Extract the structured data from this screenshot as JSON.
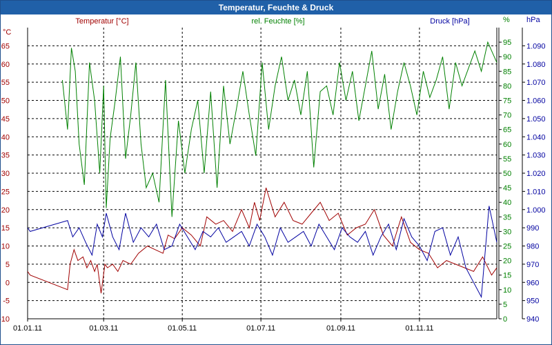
{
  "window": {
    "title": "Temperatur, Feuchte & Druck"
  },
  "colors": {
    "temperature": "#a00000",
    "humidity": "#008000",
    "pressure": "#0000a0",
    "titlebar": "#2060a8",
    "grid": "#000000"
  },
  "chart_data": {
    "type": "line",
    "title": "Temperatur, Feuchte & Druck",
    "grid": true,
    "x_ticks": [
      "01.01.11",
      "01.03.11",
      "01.05.11",
      "01.07.11",
      "01.09.11",
      "01.11.11"
    ],
    "xlim": [
      "2011-01-01",
      "2011-12-31"
    ],
    "axes": {
      "temperature": {
        "label": "Temperatur [°C]",
        "unit": "°C",
        "ylim": [
          -10,
          70
        ],
        "ticks": [
          "-10",
          "-5",
          "0",
          "5",
          "10",
          "15",
          "20",
          "25",
          "30",
          "35",
          "40",
          "45",
          "50",
          "55",
          "60",
          "65"
        ]
      },
      "humidity": {
        "label": "rel. Feuchte [%]",
        "unit": "%",
        "ylim": [
          0,
          100
        ],
        "ticks": [
          "0",
          "5",
          "10",
          "15",
          "20",
          "25",
          "30",
          "35",
          "40",
          "45",
          "50",
          "55",
          "60",
          "65",
          "70",
          "75",
          "80",
          "85",
          "90",
          "95"
        ]
      },
      "pressure": {
        "label": "Druck [hPa]",
        "unit": "hPa",
        "ylim": [
          940,
          1100
        ],
        "ticks": [
          "940",
          "950",
          "960",
          "970",
          "980",
          "990",
          "1.000",
          "1.010",
          "1.020",
          "1.030",
          "1.040",
          "1.050",
          "1.060",
          "1.070",
          "1.080",
          "1.090"
        ]
      }
    },
    "series": [
      {
        "name": "Temperatur [°C]",
        "axis": "temperature",
        "color": "#a00000",
        "x": [
          "2011-01-01",
          "2011-01-03",
          "2011-02-01",
          "2011-02-03",
          "2011-02-06",
          "2011-02-09",
          "2011-02-13",
          "2011-02-16",
          "2011-02-19",
          "2011-02-22",
          "2011-02-24",
          "2011-02-27",
          "2011-03-02",
          "2011-03-04",
          "2011-03-08",
          "2011-03-12",
          "2011-03-16",
          "2011-03-22",
          "2011-03-28",
          "2011-04-04",
          "2011-04-10",
          "2011-04-16",
          "2011-04-20",
          "2011-04-25",
          "2011-05-01",
          "2011-05-08",
          "2011-05-15",
          "2011-05-20",
          "2011-05-27",
          "2011-06-02",
          "2011-06-09",
          "2011-06-16",
          "2011-06-22",
          "2011-06-26",
          "2011-06-30",
          "2011-07-05",
          "2011-07-12",
          "2011-07-19",
          "2011-07-26",
          "2011-08-02",
          "2011-08-09",
          "2011-08-16",
          "2011-08-23",
          "2011-08-30",
          "2011-09-06",
          "2011-09-13",
          "2011-09-20",
          "2011-09-27",
          "2011-10-04",
          "2011-10-11",
          "2011-10-18",
          "2011-10-25",
          "2011-11-01",
          "2011-11-08",
          "2011-11-15",
          "2011-11-22",
          "2011-11-29",
          "2011-12-06",
          "2011-12-13",
          "2011-12-20",
          "2011-12-27",
          "2011-12-31"
        ],
        "values": [
          3,
          2,
          -2,
          5,
          9,
          6,
          7,
          4,
          6,
          3,
          5,
          -3,
          5,
          4,
          5,
          3,
          6,
          5,
          8,
          10,
          9,
          8,
          13,
          12,
          15,
          13,
          10,
          18,
          16,
          17,
          14,
          20,
          15,
          22,
          17,
          26,
          18,
          22,
          17,
          16,
          19,
          22,
          17,
          19,
          13,
          15,
          16,
          20,
          13,
          10,
          18,
          11,
          9,
          8,
          4,
          6,
          5,
          4,
          3,
          7,
          2,
          4
        ]
      },
      {
        "name": "rel. Feuchte [%]",
        "axis": "humidity",
        "color": "#008000",
        "x": [
          "2011-01-28",
          "2011-02-01",
          "2011-02-04",
          "2011-02-07",
          "2011-02-10",
          "2011-02-14",
          "2011-02-18",
          "2011-02-22",
          "2011-02-26",
          "2011-03-01",
          "2011-03-03",
          "2011-03-06",
          "2011-03-10",
          "2011-03-14",
          "2011-03-18",
          "2011-03-22",
          "2011-03-26",
          "2011-03-30",
          "2011-04-03",
          "2011-04-08",
          "2011-04-13",
          "2011-04-18",
          "2011-04-23",
          "2011-04-28",
          "2011-05-03",
          "2011-05-08",
          "2011-05-13",
          "2011-05-18",
          "2011-05-23",
          "2011-05-28",
          "2011-06-02",
          "2011-06-07",
          "2011-06-12",
          "2011-06-17",
          "2011-06-22",
          "2011-06-27",
          "2011-07-02",
          "2011-07-07",
          "2011-07-12",
          "2011-07-17",
          "2011-07-22",
          "2011-07-27",
          "2011-08-01",
          "2011-08-06",
          "2011-08-11",
          "2011-08-16",
          "2011-08-21",
          "2011-08-26",
          "2011-08-31",
          "2011-09-05",
          "2011-09-10",
          "2011-09-15",
          "2011-09-20",
          "2011-09-25",
          "2011-09-30",
          "2011-10-05",
          "2011-10-10",
          "2011-10-15",
          "2011-10-20",
          "2011-10-25",
          "2011-10-30",
          "2011-11-04",
          "2011-11-09",
          "2011-11-14",
          "2011-11-19",
          "2011-11-24",
          "2011-11-29",
          "2011-12-04",
          "2011-12-09",
          "2011-12-14",
          "2011-12-19",
          "2011-12-24",
          "2011-12-29",
          "2011-12-31"
        ],
        "values": [
          82,
          65,
          93,
          85,
          60,
          46,
          88,
          75,
          50,
          80,
          38,
          62,
          75,
          90,
          55,
          70,
          88,
          60,
          45,
          50,
          40,
          82,
          35,
          68,
          50,
          65,
          75,
          50,
          78,
          45,
          80,
          60,
          72,
          85,
          70,
          56,
          88,
          65,
          80,
          90,
          75,
          82,
          70,
          85,
          52,
          78,
          80,
          70,
          88,
          75,
          85,
          68,
          80,
          92,
          72,
          84,
          65,
          78,
          88,
          80,
          70,
          85,
          76,
          82,
          90,
          72,
          88,
          80,
          86,
          92,
          85,
          95,
          90,
          88
        ]
      },
      {
        "name": "Druck [hPa]",
        "axis": "pressure",
        "color": "#0000a0",
        "x": [
          "2011-01-01",
          "2011-01-03",
          "2011-02-01",
          "2011-02-05",
          "2011-02-10",
          "2011-02-15",
          "2011-02-20",
          "2011-02-24",
          "2011-02-28",
          "2011-03-03",
          "2011-03-08",
          "2011-03-13",
          "2011-03-18",
          "2011-03-24",
          "2011-03-30",
          "2011-04-05",
          "2011-04-11",
          "2011-04-17",
          "2011-04-23",
          "2011-04-29",
          "2011-05-05",
          "2011-05-11",
          "2011-05-17",
          "2011-05-23",
          "2011-05-29",
          "2011-06-04",
          "2011-06-10",
          "2011-06-16",
          "2011-06-22",
          "2011-06-28",
          "2011-07-04",
          "2011-07-10",
          "2011-07-16",
          "2011-07-22",
          "2011-07-28",
          "2011-08-03",
          "2011-08-09",
          "2011-08-15",
          "2011-08-21",
          "2011-08-27",
          "2011-09-02",
          "2011-09-08",
          "2011-09-14",
          "2011-09-20",
          "2011-09-26",
          "2011-10-02",
          "2011-10-08",
          "2011-10-14",
          "2011-10-20",
          "2011-10-26",
          "2011-11-01",
          "2011-11-07",
          "2011-11-13",
          "2011-11-19",
          "2011-11-25",
          "2011-12-01",
          "2011-12-07",
          "2011-12-13",
          "2011-12-19",
          "2011-12-25",
          "2011-12-31"
        ],
        "values": [
          990,
          988,
          994,
          985,
          990,
          982,
          975,
          992,
          985,
          998,
          985,
          978,
          998,
          982,
          990,
          985,
          992,
          978,
          980,
          992,
          985,
          978,
          988,
          985,
          990,
          982,
          985,
          988,
          980,
          992,
          985,
          975,
          990,
          982,
          985,
          988,
          980,
          992,
          985,
          978,
          990,
          985,
          982,
          988,
          975,
          985,
          992,
          978,
          995,
          985,
          980,
          972,
          988,
          990,
          975,
          985,
          968,
          960,
          952,
          1002,
          982
        ]
      }
    ]
  }
}
